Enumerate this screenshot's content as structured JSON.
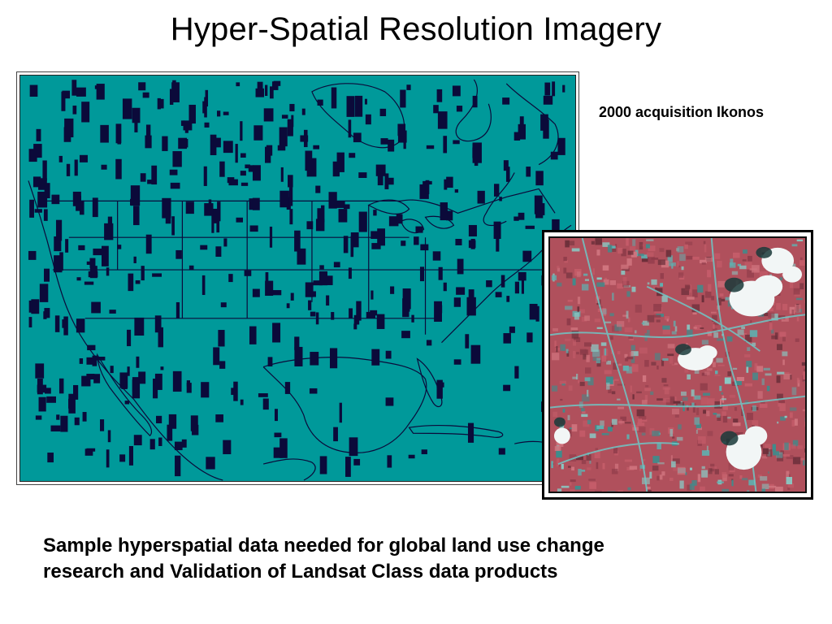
{
  "slide": {
    "title": "Hyper-Spatial Resolution Imagery",
    "acquisition_caption": "2000 acquisition Ikonos",
    "caption_line1": "Sample hyperspatial data needed for global land use change",
    "caption_line2": "research and Validation of Landsat Class data products"
  },
  "colors": {
    "map_water": "#00999a",
    "map_land": "#00999a",
    "map_coverage": "#0b0a3a",
    "ikonos_vegetation": "#b0505c",
    "ikonos_urban": "#4fb8b8",
    "ikonos_cloud": "#f2f6f6"
  }
}
